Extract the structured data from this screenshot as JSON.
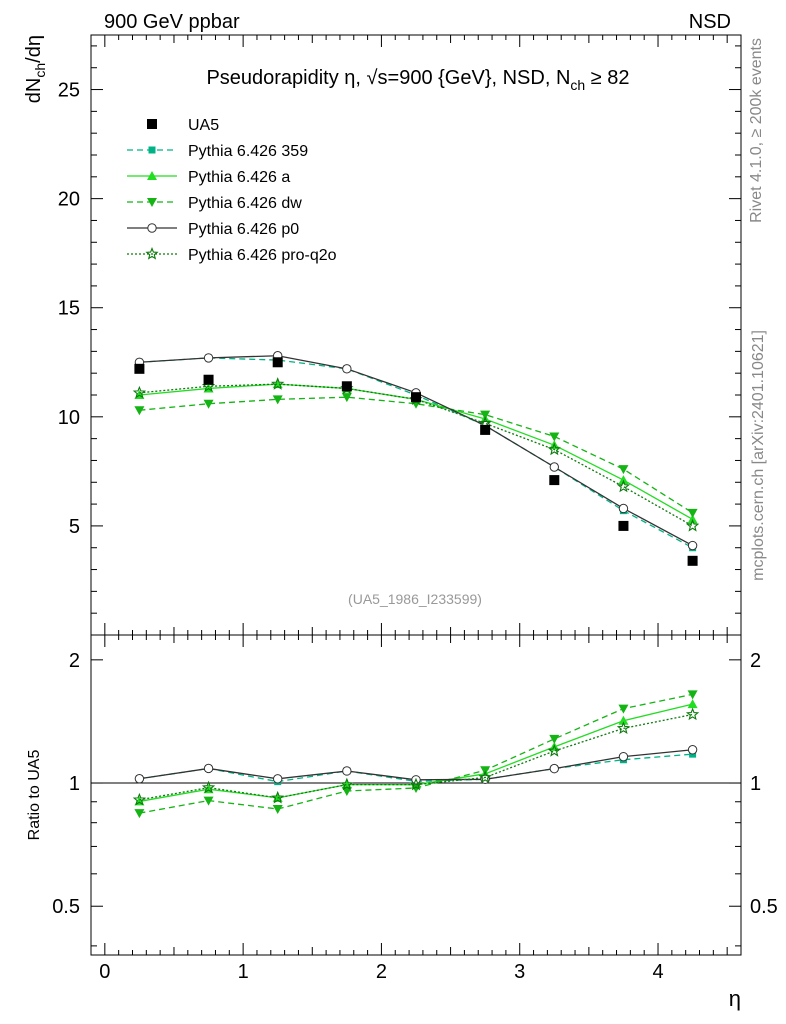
{
  "header": {
    "left": "900 GeV ppbar",
    "right": "NSD"
  },
  "side_labels": {
    "rivet": "Rivet 4.1.0, ≥ 200k events",
    "mcplots": "mcplots.cern.ch [arXiv:2401.10621]"
  },
  "chart_data": {
    "type": "line",
    "title": "Pseudorapidity η, √s=900 {GeV}, NSD, N_ch ≥ 82",
    "title_parts": {
      "main": "Pseudorapidity η, √s=900 {GeV}, NSD, N",
      "sub": "ch",
      "tail": " ≥ 82"
    },
    "watermark": "(UA5_1986_I233599)",
    "xlabel": "η",
    "ylabel": "dN_ch/dη",
    "ylabel_parts": {
      "a": "dN",
      "sub": "ch",
      "b": "/dη"
    },
    "ratio_ylabel": "Ratio to UA5",
    "xlim": [
      -0.1,
      4.6
    ],
    "ylim": [
      0,
      27.5
    ],
    "ratio_ylim": [
      0.38,
      2.3
    ],
    "x_ticks": [
      "0",
      "1",
      "2",
      "3",
      "4"
    ],
    "y_ticks": [
      "5",
      "10",
      "15",
      "20",
      "25"
    ],
    "ratio_ticks": [
      "0.5",
      "1",
      "2"
    ],
    "x": [
      0.25,
      0.75,
      1.25,
      1.75,
      2.25,
      2.75,
      3.25,
      3.75,
      4.25
    ],
    "reference": {
      "name": "UA5",
      "color": "#000000",
      "values": [
        12.2,
        11.7,
        12.5,
        11.4,
        10.9,
        9.4,
        7.1,
        5.0,
        3.4
      ]
    },
    "series": [
      {
        "name": "Pythia 6.426 359",
        "color": "#00b386",
        "dash": "6,4",
        "marker": "square-small",
        "values": [
          12.5,
          12.7,
          12.6,
          12.2,
          11.0,
          9.6,
          7.7,
          5.7,
          4.0
        ]
      },
      {
        "name": "Pythia 6.426 a",
        "color": "#22dd22",
        "dash": "",
        "marker": "triangle-up",
        "values": [
          11.0,
          11.3,
          11.5,
          11.3,
          10.8,
          9.9,
          8.7,
          7.1,
          5.3
        ]
      },
      {
        "name": "Pythia 6.426 dw",
        "color": "#14b414",
        "dash": "6,4",
        "marker": "triangle-down",
        "values": [
          10.3,
          10.6,
          10.8,
          10.9,
          10.6,
          10.1,
          9.1,
          7.6,
          5.6
        ]
      },
      {
        "name": "Pythia 6.426 p0",
        "color": "#333333",
        "dash": "",
        "marker": "circle-open",
        "values": [
          12.5,
          12.7,
          12.8,
          12.2,
          11.1,
          9.6,
          7.7,
          5.8,
          4.1
        ]
      },
      {
        "name": "Pythia 6.426 pro-q2o",
        "color": "#0e7a0e",
        "dash": "2,2",
        "marker": "star-open",
        "values": [
          11.1,
          11.4,
          11.5,
          11.3,
          10.8,
          9.7,
          8.5,
          6.8,
          5.0
        ]
      }
    ]
  }
}
